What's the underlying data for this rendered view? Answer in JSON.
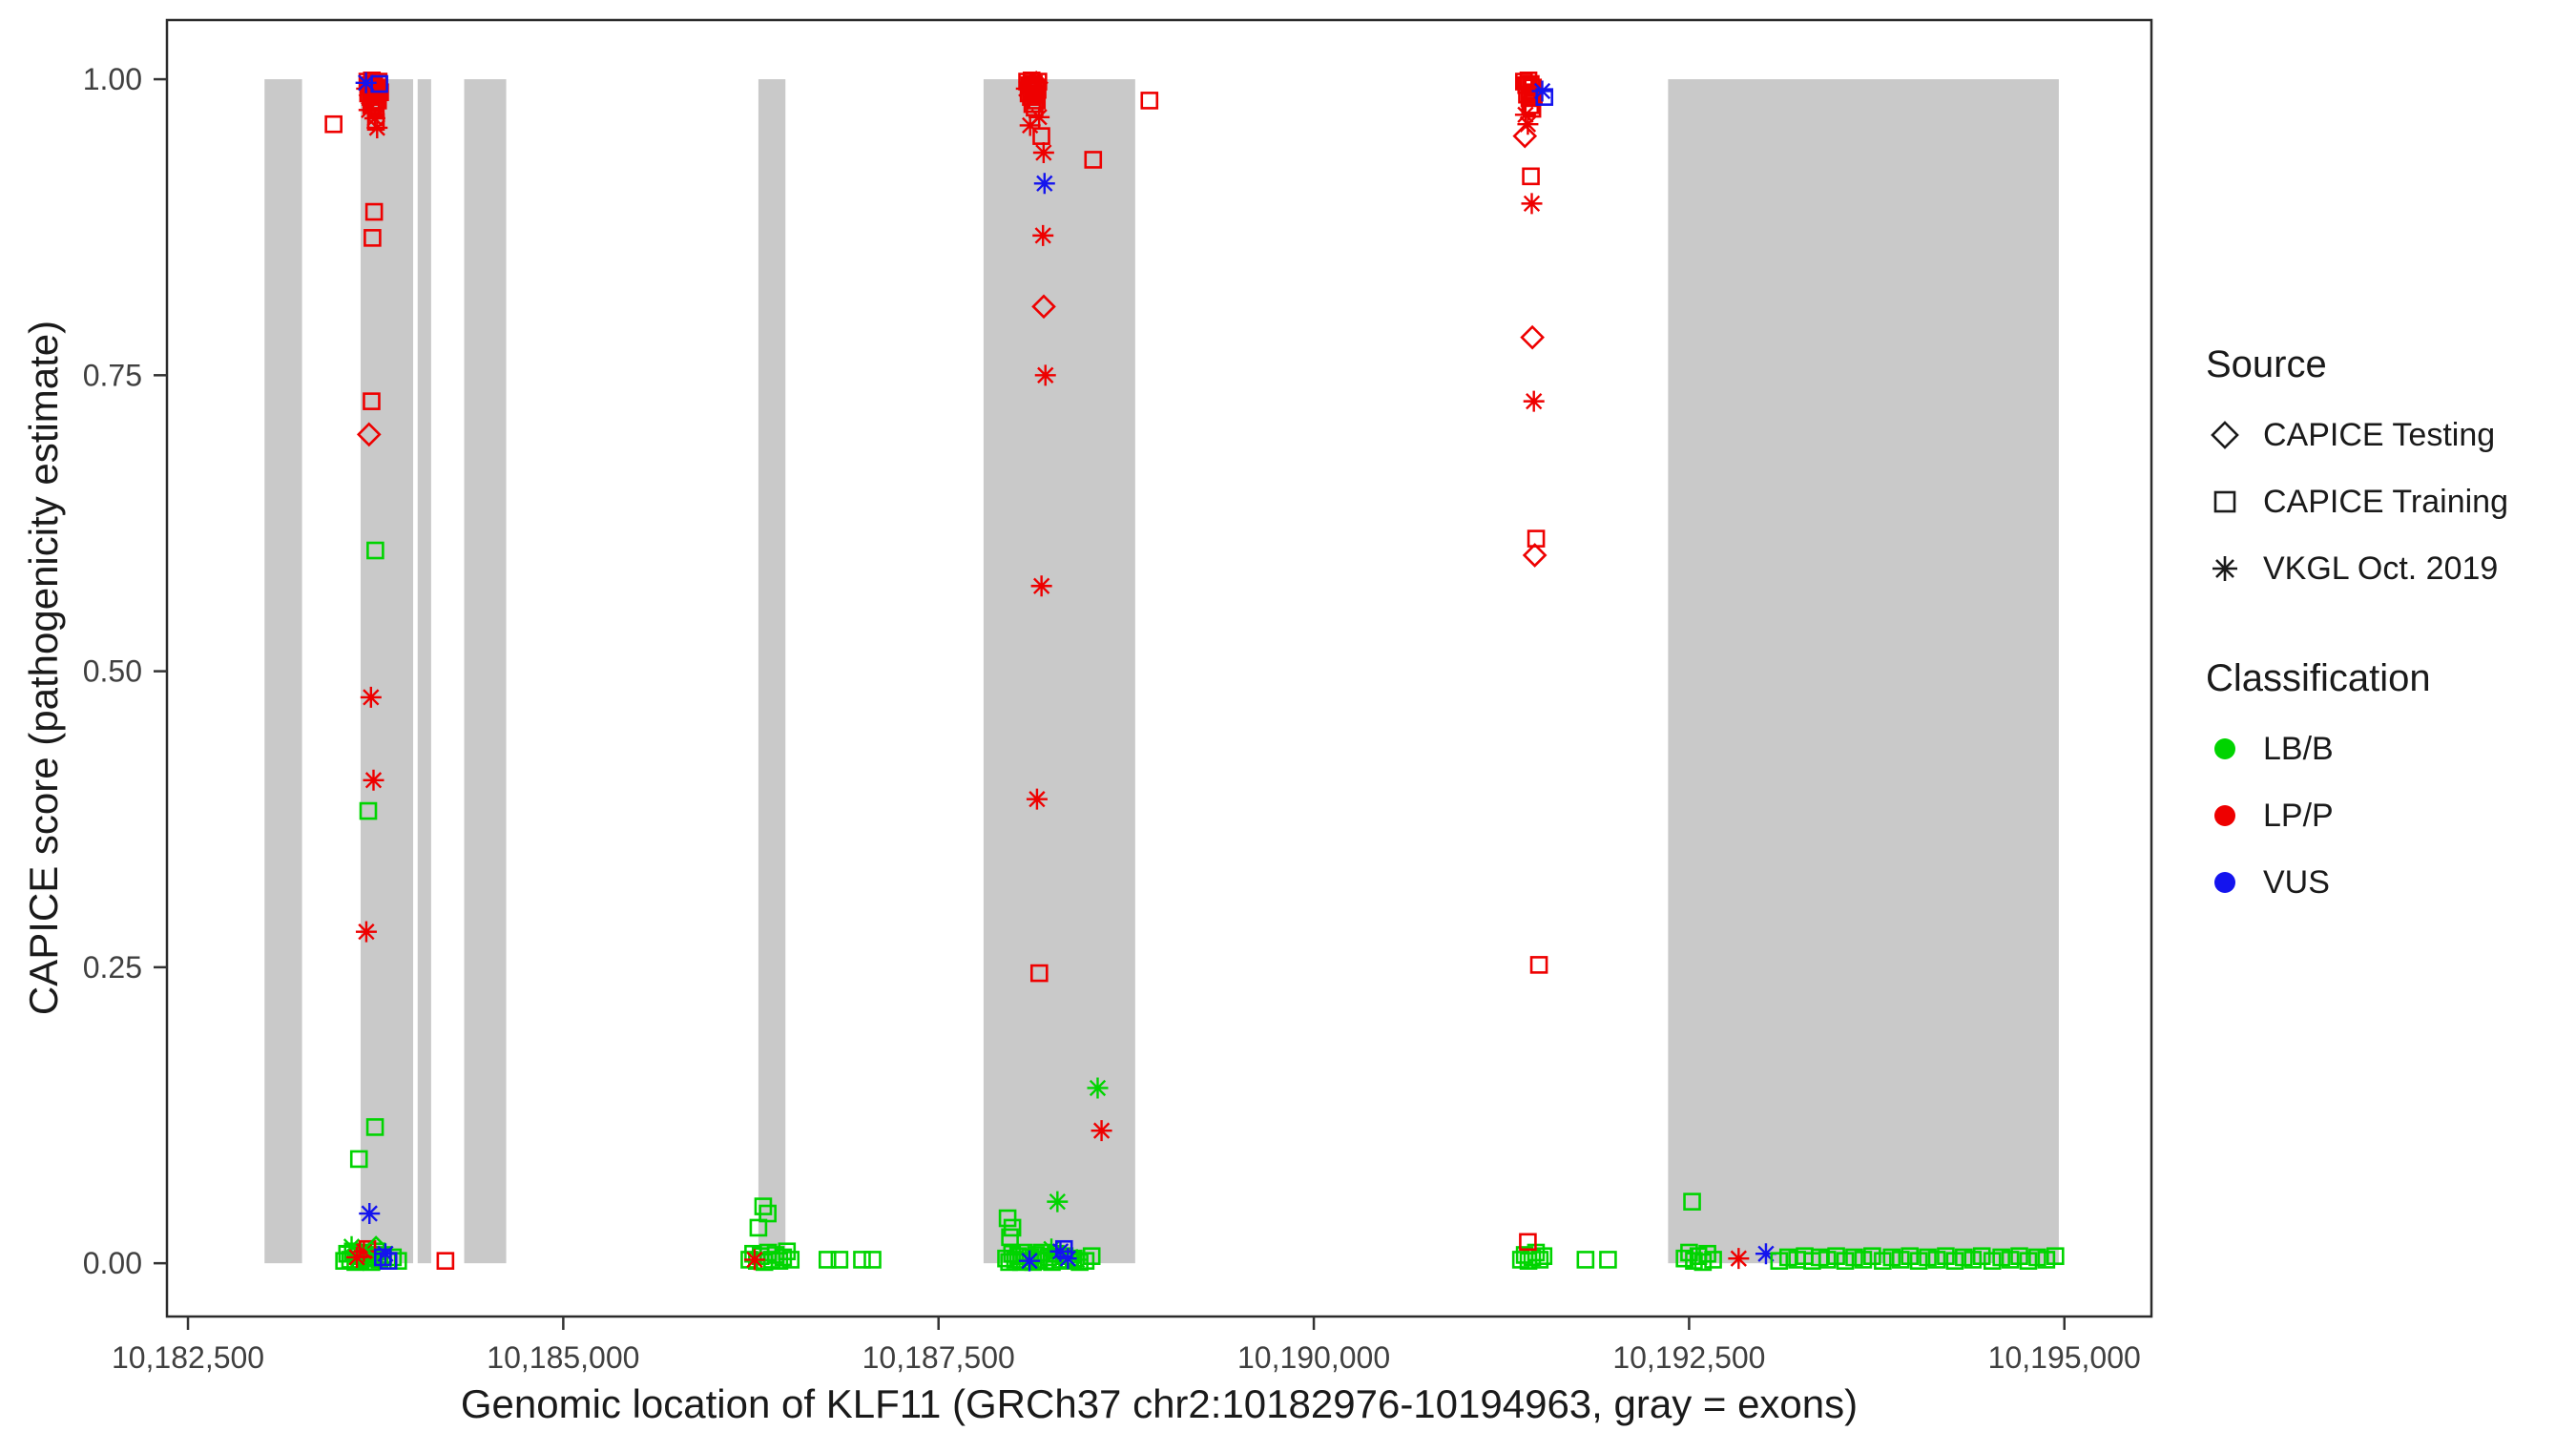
{
  "chart_data": {
    "type": "scatter",
    "title": "",
    "xlabel": "Genomic location of KLF11 (GRCh37 chr2:10182976-10194963, gray = exons)",
    "ylabel": "CAPICE score (pathogenicity estimate)",
    "xlim": [
      10182360,
      10195580
    ],
    "ylim": [
      -0.045,
      1.05
    ],
    "x_ticks": [
      10182500,
      10185000,
      10187500,
      10190000,
      10192500,
      10195000
    ],
    "x_tick_labels": [
      "10,182,500",
      "10,185,000",
      "10,187,500",
      "10,190,000",
      "10,192,500",
      "10,195,000"
    ],
    "y_ticks": [
      0,
      0.25,
      0.5,
      0.75,
      1
    ],
    "y_tick_labels": [
      "0.00",
      "0.25",
      "0.50",
      "0.75",
      "1.00"
    ],
    "grid": false,
    "panel_background": "#FFFFFF",
    "panel_border": "#2B2B2B",
    "exon_color": "#C9C9C9",
    "exons": [
      [
        10183010,
        10183260
      ],
      [
        10183650,
        10184000
      ],
      [
        10184030,
        10184120
      ],
      [
        10184340,
        10184620
      ],
      [
        10186300,
        10186480
      ],
      [
        10187800,
        10188810
      ],
      [
        10192360,
        10194963
      ]
    ],
    "shape_legend": {
      "title": "Source",
      "items": [
        {
          "label": "CAPICE Testing",
          "shape": "diamond",
          "code": "d"
        },
        {
          "label": "CAPICE Training",
          "shape": "square",
          "code": "s"
        },
        {
          "label": "VKGL Oct. 2019",
          "shape": "asterisk",
          "code": "a"
        }
      ]
    },
    "color_legend": {
      "title": "Classification",
      "items": [
        {
          "label": "LB/B",
          "color": "#00D400",
          "code": "g"
        },
        {
          "label": "LP/P",
          "color": "#EE0000",
          "code": "r"
        },
        {
          "label": "VUS",
          "color": "#1414EE",
          "code": "b"
        }
      ]
    },
    "point_format": "[genomic_x, capice_score, shape(d=diamond CAPICE Testing, s=square CAPICE Training, a=asterisk VKGL Oct. 2019), class(g=LB/B, r=LP/P, b=VUS)]",
    "points": [
      [
        10183695,
        0.998,
        "s",
        "r"
      ],
      [
        10183710,
        0.995,
        "s",
        "r"
      ],
      [
        10183725,
        0.999,
        "s",
        "r"
      ],
      [
        10183741,
        0.996,
        "s",
        "r"
      ],
      [
        10183756,
        0.993,
        "s",
        "r"
      ],
      [
        10183770,
        0.998,
        "s",
        "r"
      ],
      [
        10183700,
        0.988,
        "s",
        "r"
      ],
      [
        10183716,
        0.985,
        "s",
        "r"
      ],
      [
        10183731,
        0.99,
        "s",
        "r"
      ],
      [
        10183746,
        0.987,
        "s",
        "r"
      ],
      [
        10183761,
        0.991,
        "s",
        "r"
      ],
      [
        10183721,
        0.978,
        "s",
        "r"
      ],
      [
        10183736,
        0.98,
        "s",
        "r"
      ],
      [
        10183751,
        0.975,
        "s",
        "r"
      ],
      [
        10183766,
        0.982,
        "s",
        "r"
      ],
      [
        10183780,
        0.989,
        "s",
        "r"
      ],
      [
        10183718,
        0.994,
        "d",
        "r"
      ],
      [
        10183690,
        0.992,
        "a",
        "r"
      ],
      [
        10183706,
        0.974,
        "a",
        "r"
      ],
      [
        10183745,
        0.967,
        "a",
        "r"
      ],
      [
        10183760,
        0.959,
        "a",
        "r"
      ],
      [
        10183686,
        0.997,
        "a",
        "b"
      ],
      [
        10183775,
        0.996,
        "s",
        "b"
      ],
      [
        10183752,
        0.964,
        "s",
        "r"
      ],
      [
        10183470,
        0.962,
        "s",
        "r"
      ],
      [
        10183740,
        0.888,
        "s",
        "r"
      ],
      [
        10183729,
        0.866,
        "s",
        "r"
      ],
      [
        10183723,
        0.728,
        "s",
        "r"
      ],
      [
        10183706,
        0.7,
        "d",
        "r"
      ],
      [
        10183748,
        0.602,
        "s",
        "g"
      ],
      [
        10183719,
        0.478,
        "a",
        "r"
      ],
      [
        10183736,
        0.408,
        "a",
        "r"
      ],
      [
        10183701,
        0.382,
        "s",
        "g"
      ],
      [
        10183688,
        0.28,
        "a",
        "r"
      ],
      [
        10183746,
        0.115,
        "s",
        "g"
      ],
      [
        10183639,
        0.088,
        "s",
        "g"
      ],
      [
        10183709,
        0.042,
        "a",
        "b"
      ],
      [
        10183540,
        0.002,
        "s",
        "g"
      ],
      [
        10183560,
        0.008,
        "s",
        "g"
      ],
      [
        10183580,
        0.003,
        "s",
        "g"
      ],
      [
        10183598,
        0.01,
        "s",
        "g"
      ],
      [
        10183615,
        0.001,
        "s",
        "g"
      ],
      [
        10183632,
        0.006,
        "s",
        "g"
      ],
      [
        10183650,
        0.002,
        "s",
        "g"
      ],
      [
        10183668,
        0.009,
        "s",
        "g"
      ],
      [
        10183686,
        0.004,
        "s",
        "g"
      ],
      [
        10183704,
        0.007,
        "s",
        "g"
      ],
      [
        10183722,
        0.001,
        "s",
        "g"
      ],
      [
        10183740,
        0.005,
        "s",
        "g"
      ],
      [
        10183758,
        0.01,
        "s",
        "g"
      ],
      [
        10183776,
        0.003,
        "s",
        "g"
      ],
      [
        10183800,
        0.007,
        "s",
        "g"
      ],
      [
        10183830,
        0.002,
        "s",
        "g"
      ],
      [
        10183865,
        0.005,
        "s",
        "g"
      ],
      [
        10183900,
        0.002,
        "s",
        "g"
      ],
      [
        10183590,
        0.014,
        "a",
        "g"
      ],
      [
        10183700,
        0.003,
        "a",
        "g"
      ],
      [
        10183625,
        0.005,
        "a",
        "r"
      ],
      [
        10183672,
        0.01,
        "a",
        "r"
      ],
      [
        10183695,
        0.012,
        "s",
        "r"
      ],
      [
        10183753,
        0.013,
        "d",
        "g"
      ],
      [
        10183798,
        0.005,
        "s",
        "b"
      ],
      [
        10183836,
        0.002,
        "s",
        "b"
      ],
      [
        10183815,
        0.008,
        "a",
        "b"
      ],
      [
        10184215,
        0.002,
        "s",
        "r"
      ],
      [
        10186240,
        0.003,
        "s",
        "g"
      ],
      [
        10186265,
        0.008,
        "s",
        "g"
      ],
      [
        10186290,
        0.002,
        "s",
        "g"
      ],
      [
        10186315,
        0.006,
        "s",
        "g"
      ],
      [
        10186340,
        0.001,
        "s",
        "g"
      ],
      [
        10186365,
        0.009,
        "s",
        "g"
      ],
      [
        10186390,
        0.003,
        "s",
        "g"
      ],
      [
        10186415,
        0.007,
        "s",
        "g"
      ],
      [
        10186440,
        0.002,
        "s",
        "g"
      ],
      [
        10186465,
        0.005,
        "s",
        "g"
      ],
      [
        10186490,
        0.01,
        "s",
        "g"
      ],
      [
        10186515,
        0.003,
        "s",
        "g"
      ],
      [
        10186300,
        0.03,
        "s",
        "g"
      ],
      [
        10186332,
        0.048,
        "s",
        "g"
      ],
      [
        10186362,
        0.042,
        "s",
        "g"
      ],
      [
        10186275,
        0.003,
        "a",
        "r"
      ],
      [
        10186760,
        0.003,
        "s",
        "g"
      ],
      [
        10186840,
        0.003,
        "s",
        "g"
      ],
      [
        10186990,
        0.003,
        "s",
        "g"
      ],
      [
        10187060,
        0.003,
        "s",
        "g"
      ],
      [
        10188090,
        0.998,
        "s",
        "r"
      ],
      [
        10188105,
        0.995,
        "s",
        "r"
      ],
      [
        10188120,
        0.999,
        "s",
        "r"
      ],
      [
        10188135,
        0.996,
        "s",
        "r"
      ],
      [
        10188150,
        0.993,
        "s",
        "r"
      ],
      [
        10188165,
        0.998,
        "s",
        "r"
      ],
      [
        10188100,
        0.988,
        "s",
        "r"
      ],
      [
        10188115,
        0.985,
        "s",
        "r"
      ],
      [
        10188130,
        0.99,
        "s",
        "r"
      ],
      [
        10188145,
        0.987,
        "s",
        "r"
      ],
      [
        10188160,
        0.991,
        "s",
        "r"
      ],
      [
        10188125,
        0.979,
        "s",
        "r"
      ],
      [
        10188140,
        0.976,
        "s",
        "r"
      ],
      [
        10188155,
        0.982,
        "s",
        "r"
      ],
      [
        10188085,
        0.992,
        "a",
        "r"
      ],
      [
        10188170,
        0.968,
        "a",
        "r"
      ],
      [
        10188110,
        0.961,
        "a",
        "r"
      ],
      [
        10188151,
        0.997,
        "d",
        "r"
      ],
      [
        10188185,
        0.952,
        "s",
        "r"
      ],
      [
        10188200,
        0.938,
        "a",
        "r"
      ],
      [
        10188206,
        0.912,
        "a",
        "b"
      ],
      [
        10188196,
        0.868,
        "a",
        "r"
      ],
      [
        10188201,
        0.808,
        "d",
        "r"
      ],
      [
        10188212,
        0.75,
        "a",
        "r"
      ],
      [
        10188186,
        0.572,
        "a",
        "r"
      ],
      [
        10188156,
        0.392,
        "a",
        "r"
      ],
      [
        10188171,
        0.245,
        "s",
        "r"
      ],
      [
        10188530,
        0.932,
        "s",
        "r"
      ],
      [
        10188905,
        0.982,
        "s",
        "r"
      ],
      [
        10187960,
        0.038,
        "s",
        "g"
      ],
      [
        10187976,
        0.022,
        "s",
        "g"
      ],
      [
        10187992,
        0.03,
        "s",
        "g"
      ],
      [
        10187950,
        0.004,
        "s",
        "g"
      ],
      [
        10187970,
        0.001,
        "s",
        "g"
      ],
      [
        10187990,
        0.008,
        "s",
        "g"
      ],
      [
        10188010,
        0.003,
        "s",
        "g"
      ],
      [
        10188030,
        0.006,
        "s",
        "g"
      ],
      [
        10188050,
        0.001,
        "s",
        "g"
      ],
      [
        10188070,
        0.009,
        "s",
        "g"
      ],
      [
        10188090,
        0.002,
        "s",
        "g"
      ],
      [
        10188110,
        0.005,
        "s",
        "g"
      ],
      [
        10188130,
        0.001,
        "s",
        "g"
      ],
      [
        10188150,
        0.007,
        "s",
        "g"
      ],
      [
        10188170,
        0.003,
        "s",
        "g"
      ],
      [
        10188190,
        0.009,
        "s",
        "g"
      ],
      [
        10188210,
        0.002,
        "s",
        "g"
      ],
      [
        10188230,
        0.005,
        "s",
        "g"
      ],
      [
        10188255,
        0.001,
        "s",
        "g"
      ],
      [
        10188280,
        0.008,
        "s",
        "g"
      ],
      [
        10188310,
        0.003,
        "s",
        "g"
      ],
      [
        10188340,
        0.006,
        "s",
        "g"
      ],
      [
        10188370,
        0.002,
        "s",
        "g"
      ],
      [
        10188400,
        0.004,
        "s",
        "g"
      ],
      [
        10188440,
        0.001,
        "s",
        "g"
      ],
      [
        10188292,
        0.052,
        "a",
        "g"
      ],
      [
        10188252,
        0.012,
        "a",
        "g"
      ],
      [
        10188422,
        0.003,
        "a",
        "g"
      ],
      [
        10188106,
        0.002,
        "a",
        "b"
      ],
      [
        10188312,
        0.01,
        "a",
        "b"
      ],
      [
        10188362,
        0.004,
        "a",
        "b"
      ],
      [
        10188336,
        0.012,
        "s",
        "b"
      ],
      [
        10188480,
        0.002,
        "s",
        "g"
      ],
      [
        10188520,
        0.006,
        "s",
        "g"
      ],
      [
        10188560,
        0.148,
        "a",
        "g"
      ],
      [
        10188586,
        0.112,
        "a",
        "r"
      ],
      [
        10191400,
        0.998,
        "s",
        "r"
      ],
      [
        10191415,
        0.995,
        "s",
        "r"
      ],
      [
        10191430,
        0.999,
        "s",
        "r"
      ],
      [
        10191445,
        0.996,
        "s",
        "r"
      ],
      [
        10191460,
        0.993,
        "s",
        "r"
      ],
      [
        10191420,
        0.987,
        "s",
        "r"
      ],
      [
        10191436,
        0.984,
        "s",
        "r"
      ],
      [
        10191451,
        0.989,
        "s",
        "r"
      ],
      [
        10191466,
        0.985,
        "s",
        "r"
      ],
      [
        10191441,
        0.978,
        "s",
        "r"
      ],
      [
        10191456,
        0.975,
        "s",
        "r"
      ],
      [
        10191410,
        0.97,
        "a",
        "r"
      ],
      [
        10191426,
        0.962,
        "a",
        "r"
      ],
      [
        10191522,
        0.99,
        "a",
        "b"
      ],
      [
        10191536,
        0.985,
        "s",
        "b"
      ],
      [
        10191406,
        0.952,
        "d",
        "r"
      ],
      [
        10191446,
        0.918,
        "s",
        "r"
      ],
      [
        10191452,
        0.895,
        "a",
        "r"
      ],
      [
        10191456,
        0.782,
        "d",
        "r"
      ],
      [
        10191466,
        0.728,
        "a",
        "r"
      ],
      [
        10191481,
        0.612,
        "s",
        "r"
      ],
      [
        10191472,
        0.598,
        "d",
        "r"
      ],
      [
        10191500,
        0.252,
        "s",
        "r"
      ],
      [
        10191380,
        0.003,
        "s",
        "g"
      ],
      [
        10191405,
        0.007,
        "s",
        "g"
      ],
      [
        10191430,
        0.002,
        "s",
        "g"
      ],
      [
        10191455,
        0.005,
        "s",
        "g"
      ],
      [
        10191480,
        0.009,
        "s",
        "g"
      ],
      [
        10191505,
        0.003,
        "s",
        "g"
      ],
      [
        10191530,
        0.006,
        "s",
        "g"
      ],
      [
        10191426,
        0.018,
        "s",
        "r"
      ],
      [
        10191810,
        0.003,
        "s",
        "g"
      ],
      [
        10191960,
        0.003,
        "s",
        "g"
      ],
      [
        10192520,
        0.052,
        "s",
        "g"
      ],
      [
        10192470,
        0.004,
        "s",
        "g"
      ],
      [
        10192500,
        0.009,
        "s",
        "g"
      ],
      [
        10192532,
        0.002,
        "s",
        "g"
      ],
      [
        10192562,
        0.006,
        "s",
        "g"
      ],
      [
        10192592,
        0.001,
        "s",
        "g"
      ],
      [
        10192622,
        0.008,
        "s",
        "g"
      ],
      [
        10192660,
        0.003,
        "s",
        "g"
      ],
      [
        10192830,
        0.004,
        "a",
        "r"
      ],
      [
        10193012,
        0.008,
        "a",
        "b"
      ],
      [
        10193100,
        0.002,
        "s",
        "g"
      ],
      [
        10193160,
        0.005,
        "s",
        "g"
      ],
      [
        10193220,
        0.003,
        "s",
        "g"
      ],
      [
        10193270,
        0.006,
        "s",
        "g"
      ],
      [
        10193320,
        0.002,
        "s",
        "g"
      ],
      [
        10193370,
        0.005,
        "s",
        "g"
      ],
      [
        10193420,
        0.003,
        "s",
        "g"
      ],
      [
        10193480,
        0.006,
        "s",
        "g"
      ],
      [
        10193540,
        0.002,
        "s",
        "g"
      ],
      [
        10193600,
        0.005,
        "s",
        "g"
      ],
      [
        10193660,
        0.003,
        "s",
        "g"
      ],
      [
        10193720,
        0.006,
        "s",
        "g"
      ],
      [
        10193790,
        0.002,
        "s",
        "g"
      ],
      [
        10193850,
        0.005,
        "s",
        "g"
      ],
      [
        10193910,
        0.003,
        "s",
        "g"
      ],
      [
        10193970,
        0.006,
        "s",
        "g"
      ],
      [
        10194030,
        0.002,
        "s",
        "g"
      ],
      [
        10194090,
        0.005,
        "s",
        "g"
      ],
      [
        10194150,
        0.003,
        "s",
        "g"
      ],
      [
        10194210,
        0.006,
        "s",
        "g"
      ],
      [
        10194270,
        0.002,
        "s",
        "g"
      ],
      [
        10194330,
        0.005,
        "s",
        "g"
      ],
      [
        10194390,
        0.003,
        "s",
        "g"
      ],
      [
        10194450,
        0.006,
        "s",
        "g"
      ],
      [
        10194520,
        0.002,
        "s",
        "g"
      ],
      [
        10194580,
        0.005,
        "s",
        "g"
      ],
      [
        10194640,
        0.003,
        "s",
        "g"
      ],
      [
        10194700,
        0.006,
        "s",
        "g"
      ],
      [
        10194760,
        0.002,
        "s",
        "g"
      ],
      [
        10194820,
        0.005,
        "s",
        "g"
      ],
      [
        10194880,
        0.003,
        "s",
        "g"
      ],
      [
        10194940,
        0.006,
        "s",
        "g"
      ]
    ]
  }
}
